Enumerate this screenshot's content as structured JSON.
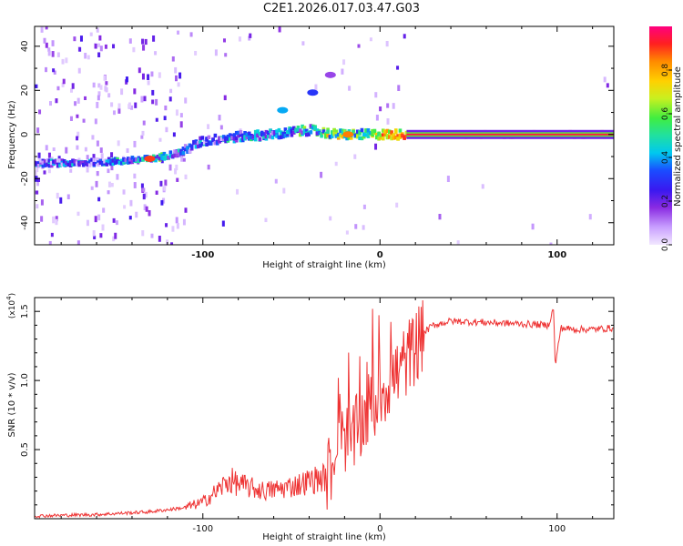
{
  "title": "C2E1.2026.017.03.47.G03",
  "chart_data": [
    {
      "type": "heatmap",
      "xlabel": "Height of straight line (km)",
      "ylabel": "Frequency (Hz)",
      "xlim": [
        -195,
        132
      ],
      "ylim": [
        -50,
        49
      ],
      "xticks": [
        -100,
        0,
        100
      ],
      "xtick_labels": [
        "-100",
        "0",
        "100"
      ],
      "yticks": [
        -40,
        -20,
        0,
        20,
        40
      ],
      "ytick_labels": [
        "-40",
        "-20",
        "0",
        "20",
        "40"
      ],
      "colorbar": {
        "label": "Normalized spectral amplitude",
        "range": [
          0,
          1
        ],
        "ticks": [
          0.0,
          0.2,
          0.4,
          0.6,
          0.8
        ],
        "tick_labels": [
          "0.0",
          "0.2",
          "0.4",
          "0.6",
          "0.8"
        ]
      },
      "ridge": [
        {
          "x": -195,
          "y": -13,
          "a": 0.35
        },
        {
          "x": -170,
          "y": -13,
          "a": 0.35
        },
        {
          "x": -145,
          "y": -12,
          "a": 0.45
        },
        {
          "x": -128,
          "y": -11,
          "a": 0.55
        },
        {
          "x": -112,
          "y": -8,
          "a": 0.4
        },
        {
          "x": -100,
          "y": -3,
          "a": 0.35
        },
        {
          "x": -80,
          "y": -1,
          "a": 0.4
        },
        {
          "x": -60,
          "y": 0,
          "a": 0.45
        },
        {
          "x": -40,
          "y": 2,
          "a": 0.5
        },
        {
          "x": -25,
          "y": 0,
          "a": 0.7
        },
        {
          "x": -10,
          "y": 0,
          "a": 0.6
        },
        {
          "x": 15,
          "y": 0,
          "a": 0.95
        },
        {
          "x": 132,
          "y": 0,
          "a": 0.95
        }
      ],
      "features": [
        {
          "x": -55,
          "y": 11,
          "a": 0.4
        },
        {
          "x": -38,
          "y": 19,
          "a": 0.3
        },
        {
          "x": -28,
          "y": 27,
          "a": 0.15
        },
        {
          "x": -130,
          "y": -11,
          "a": 0.9
        },
        {
          "x": -18,
          "y": 0,
          "a": 0.85
        }
      ]
    },
    {
      "type": "line",
      "xlabel": "Height of straight line (km)",
      "ylabel": "SNR (10 * v/v)",
      "exponent_label": "(x10",
      "exponent_sup": "4",
      "exponent_close": ")",
      "xlim": [
        -195,
        132
      ],
      "ylim": [
        0,
        1.6
      ],
      "xticks": [
        -100,
        0,
        100
      ],
      "xtick_labels": [
        "-100",
        "0",
        "100"
      ],
      "yticks": [
        0.5,
        1.0,
        1.5
      ],
      "ytick_labels": [
        "0.5",
        "1.0",
        "1.5"
      ],
      "color": "#ee3333",
      "series": [
        {
          "name": "SNR",
          "x": [
            -195,
            -160,
            -130,
            -110,
            -100,
            -92,
            -85,
            -80,
            -72,
            -65,
            -55,
            -45,
            -38,
            -30,
            -26,
            -23,
            -20,
            -17,
            -14,
            -10,
            -6,
            -2,
            2,
            6,
            10,
            15,
            20,
            25,
            30,
            40,
            60,
            80,
            95,
            98,
            99,
            102,
            110,
            120,
            132
          ],
          "y": [
            0.02,
            0.03,
            0.05,
            0.08,
            0.12,
            0.2,
            0.28,
            0.25,
            0.22,
            0.2,
            0.22,
            0.25,
            0.28,
            0.3,
            0.45,
            0.85,
            0.6,
            0.55,
            0.6,
            0.7,
            0.8,
            0.85,
            0.95,
            1.0,
            1.05,
            1.15,
            1.25,
            1.35,
            1.4,
            1.43,
            1.42,
            1.41,
            1.4,
            1.52,
            1.1,
            1.38,
            1.37,
            1.37,
            1.38
          ]
        }
      ]
    }
  ]
}
